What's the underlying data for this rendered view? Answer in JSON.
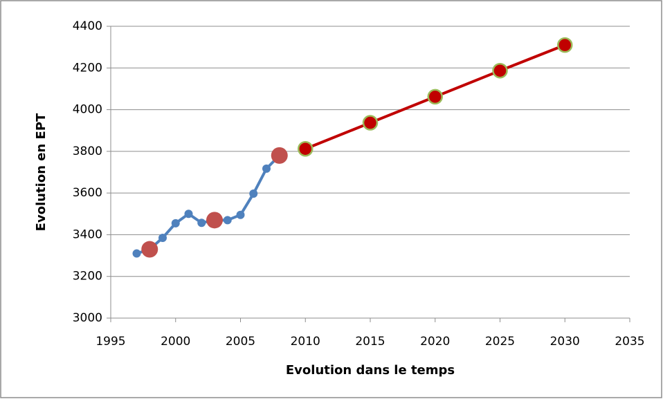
{
  "chart_data": {
    "type": "scatter",
    "x_label": "Evolution dans le temps",
    "y_label": "Evolution en EPT",
    "xlim": [
      1995,
      2035
    ],
    "xticks": [
      1995,
      2000,
      2005,
      2010,
      2015,
      2020,
      2025,
      2030,
      2035
    ],
    "ylim": [
      3000,
      4400
    ],
    "yticks": [
      3000,
      3200,
      3400,
      3600,
      3800,
      4000,
      4200,
      4400
    ],
    "grid": true,
    "series": [
      {
        "color": "#4f81bd",
        "line": true,
        "marker_size": 6,
        "x": [
          1997,
          1998,
          1999,
          2000,
          2001,
          2002,
          2003,
          2004,
          2005,
          2006,
          2007,
          2008
        ],
        "values": [
          3310,
          3330,
          3385,
          3455,
          3500,
          3457,
          3470,
          3470,
          3495,
          3597,
          3717,
          3780
        ]
      },
      {
        "color": "#c0504d",
        "line": false,
        "marker_size": 12,
        "x": [
          1998,
          2003,
          2008
        ],
        "values": [
          3330,
          3470,
          3780
        ]
      },
      {
        "color": "#c00000",
        "edge_color": "#9bbb59",
        "line": true,
        "marker_size": 10,
        "x": [
          2010,
          2015,
          2020,
          2025,
          2030
        ],
        "values": [
          3812,
          3937,
          4062,
          4187,
          4310
        ]
      }
    ]
  }
}
